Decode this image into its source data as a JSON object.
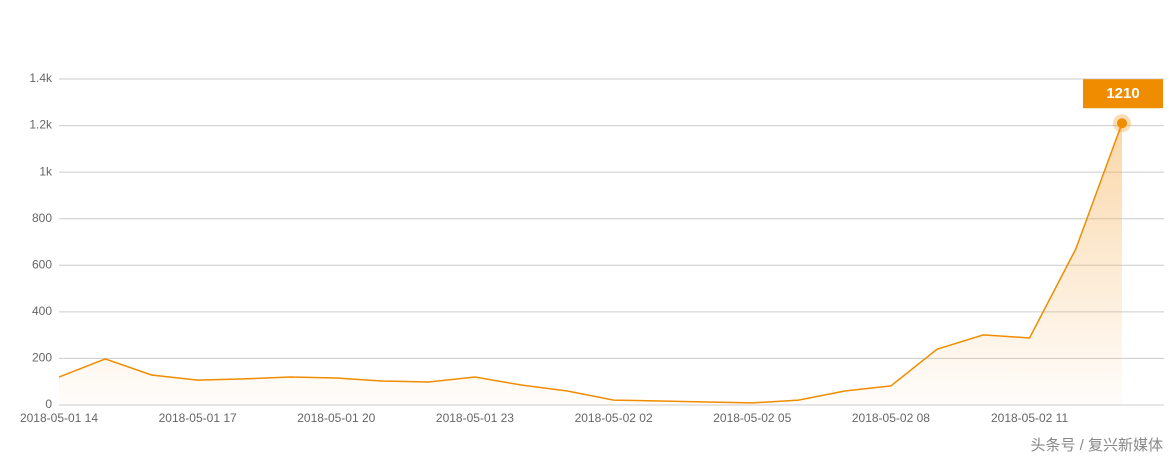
{
  "chart_data": {
    "type": "line",
    "categories": [
      "2018-05-01 14",
      null,
      null,
      "2018-05-01 17",
      null,
      null,
      "2018-05-01 20",
      null,
      null,
      "2018-05-01 23",
      null,
      null,
      "2018-05-02 02",
      null,
      null,
      "2018-05-02 05",
      null,
      null,
      "2018-05-02 08",
      null,
      null,
      "2018-05-02 11",
      null,
      null
    ],
    "values": [
      120,
      198,
      129,
      107,
      112,
      120,
      116,
      103,
      99,
      120,
      86,
      60,
      21,
      17,
      13,
      9,
      21,
      60,
      82,
      240,
      301,
      288,
      670,
      1210
    ],
    "color": "#f08c00",
    "ylim": [
      0,
      1400
    ],
    "yticks": [
      0,
      200,
      400,
      600,
      800,
      {
        "value": 1000,
        "label": "1k"
      },
      {
        "value": 1200,
        "label": "1.2k"
      },
      {
        "value": 1400,
        "label": "1.4k"
      }
    ],
    "grid": true,
    "watermark": "头条号 / 复兴新媒体"
  }
}
